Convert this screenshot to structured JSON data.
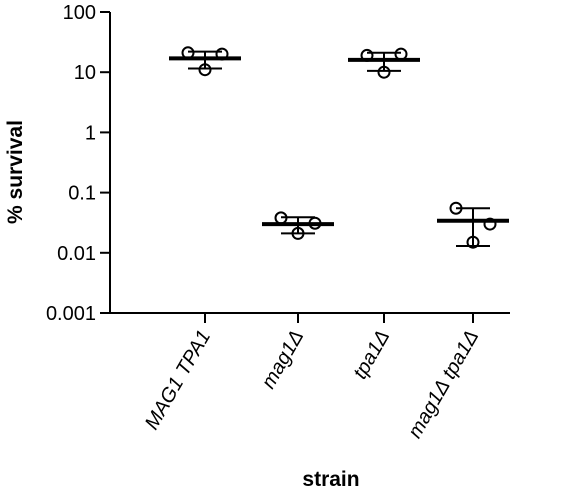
{
  "chart_data": {
    "type": "scatter",
    "xlabel": "strain",
    "ylabel": "% survival",
    "yscale": "log",
    "ylim": [
      0.001,
      100
    ],
    "yticks": [
      100,
      10,
      1,
      0.1,
      0.01,
      0.001
    ],
    "ytick_labels": [
      "100",
      "10",
      "1",
      "0.1",
      "0.01",
      "0.001"
    ],
    "categories": [
      "MAG1 TPA1",
      "mag1Δ",
      "tpa1Δ",
      "mag1Δ tpa1Δ"
    ],
    "groups": [
      {
        "category": "MAG1 TPA1",
        "points": [
          21,
          11,
          20
        ],
        "mean": 17,
        "error_low": 11.5,
        "error_high": 22
      },
      {
        "category": "mag1Δ",
        "points": [
          0.038,
          0.021,
          0.031
        ],
        "mean": 0.03,
        "error_low": 0.021,
        "error_high": 0.039
      },
      {
        "category": "tpa1Δ",
        "points": [
          19,
          10,
          20
        ],
        "mean": 16,
        "error_low": 10.5,
        "error_high": 21
      },
      {
        "category": "mag1Δ tpa1Δ",
        "points": [
          0.055,
          0.015,
          0.03
        ],
        "mean": 0.034,
        "error_low": 0.013,
        "error_high": 0.055
      }
    ],
    "marker": "open-circle",
    "grid": false,
    "legend": false,
    "colors": {
      "marks": "#000000"
    }
  }
}
